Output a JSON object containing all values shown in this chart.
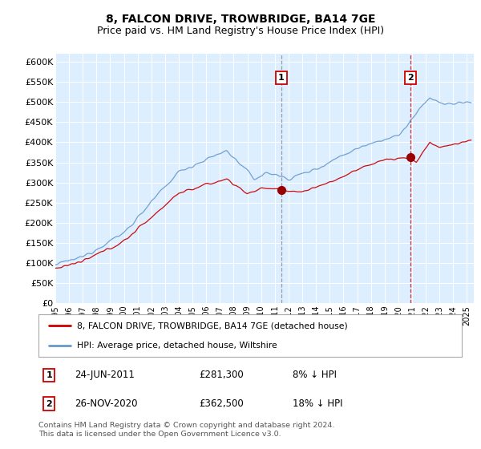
{
  "title": "8, FALCON DRIVE, TROWBRIDGE, BA14 7GE",
  "subtitle": "Price paid vs. HM Land Registry's House Price Index (HPI)",
  "ylabel_ticks": [
    "£0",
    "£50K",
    "£100K",
    "£150K",
    "£200K",
    "£250K",
    "£300K",
    "£350K",
    "£400K",
    "£450K",
    "£500K",
    "£550K",
    "£600K"
  ],
  "ytick_values": [
    0,
    50000,
    100000,
    150000,
    200000,
    250000,
    300000,
    350000,
    400000,
    450000,
    500000,
    550000,
    600000
  ],
  "ylim": [
    0,
    620000
  ],
  "xlim_start": 1995.0,
  "xlim_end": 2025.5,
  "plot_bg_color": "#ddeeff",
  "line_red_color": "#cc0000",
  "line_blue_color": "#6699cc",
  "marker1_x": 2011.48,
  "marker1_y": 281300,
  "marker2_x": 2020.9,
  "marker2_y": 362500,
  "legend_line1": "8, FALCON DRIVE, TROWBRIDGE, BA14 7GE (detached house)",
  "legend_line2": "HPI: Average price, detached house, Wiltshire",
  "footer": "Contains HM Land Registry data © Crown copyright and database right 2024.\nThis data is licensed under the Open Government Licence v3.0.",
  "title_fontsize": 10,
  "subtitle_fontsize": 9,
  "tick_fontsize": 8
}
